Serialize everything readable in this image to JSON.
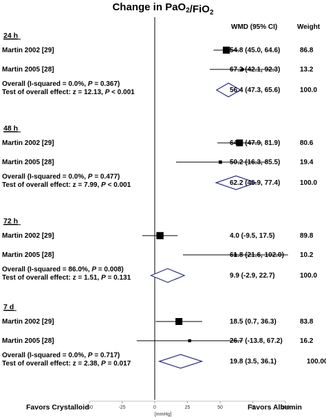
{
  "chart_data": {
    "type": "forest",
    "title": "Change in PaO₂/FiO₂",
    "columns": {
      "estimate": "WMD (95% CI)",
      "weight": "Weight"
    },
    "xlabel": "[mmHg]",
    "xticks": [
      -50,
      -25,
      0,
      25,
      50,
      75,
      100
    ],
    "xlim": [
      -50,
      100
    ],
    "favors_left": "Favors Crystalloid",
    "favors_right": "Favors Albumin",
    "groups": [
      {
        "label": "24 h",
        "studies": [
          {
            "name": "Martin 2002 [29]",
            "est": 54.8,
            "lo": 45.0,
            "hi": 64.6,
            "ci_text": "54.8 (45.0, 64.6)",
            "weight": "86.8",
            "w": 86.8
          },
          {
            "name": "Martin 2005 [28]",
            "est": 67.2,
            "lo": 42.1,
            "hi": 92.3,
            "ci_text": "67.2 (42.1, 92.3)",
            "weight": "13.2",
            "w": 13.2
          }
        ],
        "overall": {
          "label_prefix": "Overall (I-squared = 0.0%, ",
          "p_label": "P",
          "p_text": " = 0.367)",
          "est": 56.4,
          "lo": 47.3,
          "hi": 65.6,
          "ci_text": "56.4 (47.3, 65.6)",
          "weight": "100.0"
        },
        "test": {
          "prefix": "Test of overall effect: z = 12.13, ",
          "p_label": "P",
          "suffix": " < 0.001"
        }
      },
      {
        "label": "48 h",
        "studies": [
          {
            "name": "Martin 2002 [29]",
            "est": 64.9,
            "lo": 47.9,
            "hi": 81.9,
            "ci_text": "64.9 (47.9, 81.9)",
            "weight": "80.6",
            "w": 80.6
          },
          {
            "name": "Martin 2005 [28]",
            "est": 50.2,
            "lo": 16.3,
            "hi": 85.5,
            "ci_text": "50.2 (16.3, 85.5)",
            "weight": "19.4",
            "w": 19.4
          }
        ],
        "overall": {
          "label_prefix": "Overall (I-squared = 0.0%, ",
          "p_label": "P",
          "p_text": " = 0.477)",
          "est": 62.2,
          "lo": 46.9,
          "hi": 77.4,
          "ci_text": "62.2 (46.9, 77.4)",
          "weight": "100.0"
        },
        "test": {
          "prefix": "Test of overall effect: z = 7.99, ",
          "p_label": "P",
          "suffix": " < 0.001"
        }
      },
      {
        "label": "72 h",
        "studies": [
          {
            "name": "Martin 2002 [29]",
            "est": 4.0,
            "lo": -9.5,
            "hi": 17.5,
            "ci_text": "4.0 (-9.5, 17.5)",
            "weight": "89.8",
            "w": 89.8
          },
          {
            "name": "Martin 2005 [28]",
            "est": 61.8,
            "lo": 21.6,
            "hi": 102.0,
            "ci_text": "61.8 (21.6, 102.0)",
            "weight": "10.2",
            "w": 10.2
          }
        ],
        "overall": {
          "label_prefix": "Overall (I-squared = 86.0%, ",
          "p_label": "P",
          "p_text": " = 0.008)",
          "est": 9.9,
          "lo": -2.9,
          "hi": 22.7,
          "ci_text": "9.9 (-2.9, 22.7)",
          "weight": "100.0"
        },
        "test": {
          "prefix": "Test of overall effect: z = 1.51, ",
          "p_label": "P",
          "suffix": " = 0.131"
        }
      },
      {
        "label": "7 d",
        "studies": [
          {
            "name": "Martin 2002 [29]",
            "est": 18.5,
            "lo": 0.7,
            "hi": 36.3,
            "ci_text": "18.5 (0.7, 36.3)",
            "weight": "83.8",
            "w": 83.8
          },
          {
            "name": "Martin 2005 [28]",
            "est": 26.7,
            "lo": -13.8,
            "hi": 67.2,
            "ci_text": "26.7 (-13.8, 67.2)",
            "weight": "16.2",
            "w": 16.2
          }
        ],
        "overall": {
          "label_prefix": "Overall (I-squared = 0.0%, ",
          "p_label": "P",
          "p_text": " = 0.717)",
          "est": 19.8,
          "lo": 3.5,
          "hi": 36.1,
          "ci_text": "19.8 (3.5, 36.1)",
          "weight": "100.00"
        },
        "test": {
          "prefix": "Test of overall effect: z = 2.38, ",
          "p_label": "P",
          "suffix": " = 0.017"
        }
      }
    ],
    "colors": {
      "diamond": "#2b2b8c",
      "marker": "#000000",
      "line": "#000000"
    }
  }
}
